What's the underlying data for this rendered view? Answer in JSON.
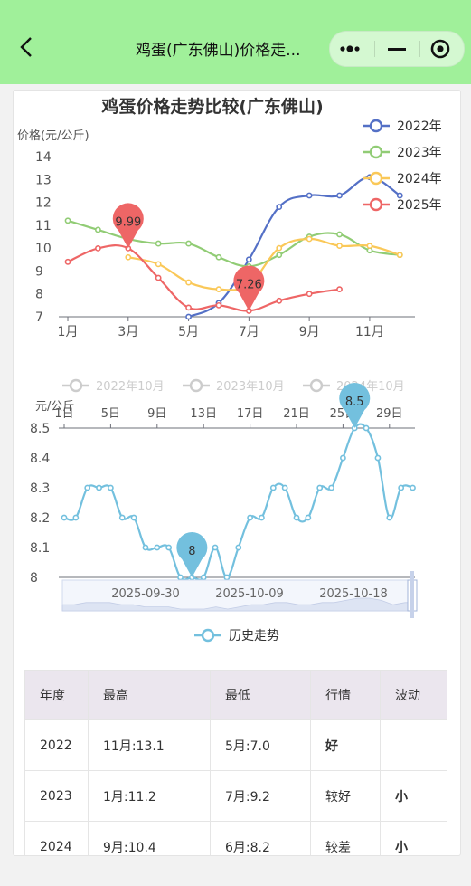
{
  "header": {
    "title": "鸡蛋(广东佛山)价格走..."
  },
  "chart_data": [
    {
      "type": "line",
      "title": "鸡蛋价格走势比较(广东佛山)",
      "ylabel": "价格(元/公斤)",
      "ylim": [
        7,
        14
      ],
      "yticks": [
        7,
        8,
        9,
        10,
        11,
        12,
        13,
        14
      ],
      "x": [
        1,
        2,
        3,
        4,
        5,
        6,
        7,
        8,
        9,
        10,
        11,
        12
      ],
      "xtick_labels": [
        "1月",
        "3月",
        "5月",
        "7月",
        "9月",
        "11月"
      ],
      "legend_position": "top-right",
      "series": [
        {
          "name": "2022年",
          "color": "#5470c6",
          "values": [
            null,
            null,
            null,
            null,
            7.0,
            7.6,
            9.5,
            11.8,
            12.3,
            12.3,
            13.1,
            12.3
          ]
        },
        {
          "name": "2023年",
          "color": "#91cc75",
          "values": [
            11.2,
            10.8,
            10.4,
            10.2,
            10.2,
            9.6,
            9.2,
            9.7,
            10.5,
            10.6,
            9.9,
            9.7
          ]
        },
        {
          "name": "2024年",
          "color": "#fac858",
          "values": [
            null,
            null,
            9.6,
            9.3,
            8.5,
            8.2,
            8.4,
            10.0,
            10.4,
            10.1,
            10.1,
            9.7
          ]
        },
        {
          "name": "2025年",
          "color": "#ee6666",
          "values": [
            9.4,
            9.99,
            9.99,
            8.7,
            7.4,
            7.5,
            7.26,
            7.7,
            8.0,
            8.2,
            null,
            null
          ]
        }
      ],
      "markers": [
        {
          "series": "2025年",
          "x": 3,
          "value": 9.99,
          "label": "9.99"
        },
        {
          "series": "2025年",
          "x": 7,
          "value": 7.26,
          "label": "7.26"
        }
      ]
    },
    {
      "type": "line",
      "ylabel": "元/公斤",
      "ylim": [
        8,
        8.5
      ],
      "yticks": [
        8,
        8.1,
        8.2,
        8.3,
        8.4,
        8.5
      ],
      "faded_legend": [
        "2022年10月",
        "2023年10月",
        "2024年10月"
      ],
      "day_ticks": [
        "1日",
        "5日",
        "9日",
        "13日",
        "17日",
        "21日",
        "25日",
        "29日"
      ],
      "slider_labels": [
        "2025-09-30",
        "2025-10-09",
        "2025-10-18"
      ],
      "legend": "历史走势",
      "series": [
        {
          "name": "历史走势",
          "color": "#73c0de",
          "values": [
            8.2,
            8.2,
            8.3,
            8.3,
            8.3,
            8.2,
            8.2,
            8.1,
            8.1,
            8.1,
            8.0,
            8.0,
            8.0,
            8.1,
            8.0,
            8.1,
            8.2,
            8.2,
            8.3,
            8.3,
            8.2,
            8.2,
            8.3,
            8.3,
            8.4,
            8.5,
            8.5,
            8.4,
            8.2,
            8.3,
            8.3
          ]
        }
      ],
      "markers": [
        {
          "index": 11,
          "value": 8.0,
          "label": "8"
        },
        {
          "index": 25,
          "value": 8.5,
          "label": "8.5"
        }
      ]
    }
  ],
  "table": {
    "headers": [
      "年度",
      "最高",
      "最低",
      "行情",
      "波动"
    ],
    "rows": [
      {
        "year": "2022",
        "high": "11月:13.1",
        "low": "5月:7.0",
        "trend": "好",
        "vol": ""
      },
      {
        "year": "2023",
        "high": "1月:11.2",
        "low": "7月:9.2",
        "trend": "较好",
        "vol": "小"
      },
      {
        "year": "2024",
        "high": "9月:10.4",
        "low": "6月:8.2",
        "trend": "较差",
        "vol": "小"
      }
    ]
  }
}
